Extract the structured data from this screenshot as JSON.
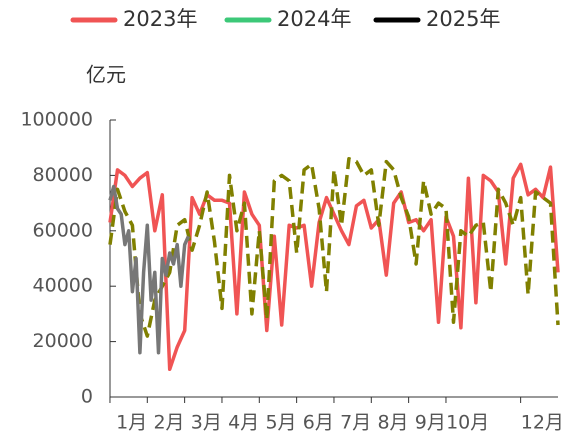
{
  "chart_data": {
    "type": "line",
    "y_label": "亿元",
    "ylim": [
      0,
      100000
    ],
    "yticks": [
      0,
      20000,
      40000,
      60000,
      80000,
      100000
    ],
    "xlim": [
      0,
      12
    ],
    "xticks": [
      {
        "value": 0.5,
        "label": "1月"
      },
      {
        "value": 1.5,
        "label": "2月"
      },
      {
        "value": 2.5,
        "label": "3月"
      },
      {
        "value": 3.5,
        "label": "4月"
      },
      {
        "value": 4.5,
        "label": "5月"
      },
      {
        "value": 5.5,
        "label": "6月"
      },
      {
        "value": 6.5,
        "label": "7月"
      },
      {
        "value": 7.5,
        "label": "8月"
      },
      {
        "value": 8.5,
        "label": "9月"
      },
      {
        "value": 9.5,
        "label": "10月"
      },
      {
        "value": 11.5,
        "label": "12月"
      }
    ],
    "series": [
      {
        "name": "2023年",
        "legend_color": "#f05454",
        "color": "#f05454",
        "dash": false,
        "x": [
          0,
          0.2,
          0.4,
          0.6,
          0.8,
          1.0,
          1.2,
          1.4,
          1.6,
          1.8,
          2.0,
          2.2,
          2.4,
          2.6,
          2.8,
          3.0,
          3.2,
          3.4,
          3.6,
          3.8,
          4.0,
          4.2,
          4.4,
          4.6,
          4.8,
          5.0,
          5.2,
          5.4,
          5.6,
          5.8,
          6.0,
          6.2,
          6.4,
          6.6,
          6.8,
          7.0,
          7.2,
          7.4,
          7.6,
          7.8,
          8.0,
          8.2,
          8.4,
          8.6,
          8.8,
          9.0,
          9.2,
          9.4,
          9.6,
          9.8,
          10.0,
          10.2,
          10.4,
          10.6,
          10.8,
          11.0,
          11.2,
          11.4,
          11.6,
          11.8,
          12.0
        ],
        "values": [
          63000,
          82000,
          80000,
          76000,
          79000,
          81000,
          60000,
          73000,
          10000,
          18000,
          24000,
          72000,
          66000,
          73000,
          71000,
          71000,
          70000,
          30000,
          74000,
          66000,
          62000,
          24000,
          58000,
          26000,
          62000,
          61000,
          62000,
          40000,
          63000,
          72000,
          66000,
          60000,
          55000,
          69000,
          71000,
          61000,
          64000,
          44000,
          70000,
          74000,
          63000,
          64000,
          60000,
          64000,
          27000,
          65000,
          58000,
          25000,
          79000,
          34000,
          80000,
          78000,
          74000,
          48000,
          79000,
          84000,
          73000,
          75000,
          72000,
          83000,
          45000
        ]
      },
      {
        "name": "2024年",
        "legend_color": "#3cc878",
        "color": "#808000",
        "dash": true,
        "x": [
          0,
          0.2,
          0.4,
          0.6,
          0.8,
          1.0,
          1.2,
          1.4,
          1.6,
          1.8,
          2.0,
          2.2,
          2.4,
          2.6,
          2.8,
          3.0,
          3.2,
          3.4,
          3.6,
          3.8,
          4.0,
          4.2,
          4.4,
          4.6,
          4.8,
          5.0,
          5.2,
          5.4,
          5.6,
          5.8,
          6.0,
          6.2,
          6.4,
          6.6,
          6.8,
          7.0,
          7.2,
          7.4,
          7.6,
          7.8,
          8.0,
          8.2,
          8.4,
          8.6,
          8.8,
          9.0,
          9.2,
          9.4,
          9.6,
          9.8,
          10.0,
          10.2,
          10.4,
          10.6,
          10.8,
          11.0,
          11.2,
          11.4,
          11.6,
          11.8,
          12.0
        ],
        "values": [
          55000,
          75000,
          67000,
          62000,
          30000,
          22000,
          35000,
          40000,
          45000,
          62000,
          64000,
          53000,
          62000,
          74000,
          56000,
          32000,
          80000,
          60000,
          70000,
          30000,
          60000,
          28000,
          78000,
          80000,
          78000,
          52000,
          82000,
          84000,
          68000,
          38000,
          82000,
          62000,
          86000,
          85000,
          80000,
          82000,
          62000,
          85000,
          82000,
          72000,
          65000,
          48000,
          78000,
          66000,
          70000,
          68000,
          27000,
          60000,
          58000,
          62000,
          63000,
          38000,
          75000,
          70000,
          62000,
          72000,
          37000,
          74000,
          72000,
          70000,
          26000
        ]
      },
      {
        "name": "2025年",
        "legend_color": "#000000",
        "color": "#777777",
        "dash": false,
        "x": [
          0,
          0.1,
          0.2,
          0.3,
          0.4,
          0.5,
          0.6,
          0.7,
          0.8,
          0.9,
          1.0,
          1.1,
          1.2,
          1.3,
          1.4,
          1.5,
          1.6,
          1.7,
          1.8,
          1.9,
          2.0,
          2.1
        ],
        "values": [
          71000,
          76000,
          68000,
          66000,
          55000,
          60000,
          38000,
          50000,
          16000,
          45000,
          62000,
          35000,
          45000,
          16000,
          50000,
          44000,
          52000,
          48000,
          55000,
          40000,
          55000,
          58000
        ]
      }
    ]
  }
}
